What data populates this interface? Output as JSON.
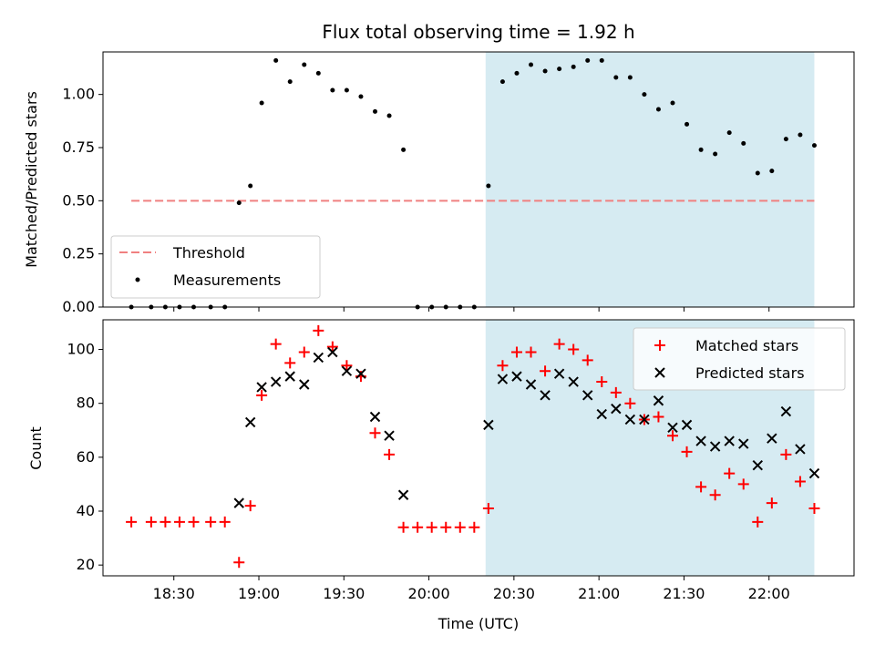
{
  "chart_data": {
    "title": "Flux total observing time = 1.92 h",
    "xlabel": "Time (UTC)",
    "x_tick_labels": [
      "18:30",
      "19:00",
      "19:30",
      "20:00",
      "20:30",
      "21:00",
      "21:30",
      "22:00"
    ],
    "x_tick_times": [
      "18:30",
      "19:00",
      "19:30",
      "20:00",
      "20:30",
      "21:00",
      "21:30",
      "22:00"
    ],
    "xlim": [
      "18:05",
      "22:30"
    ],
    "shaded_interval": [
      "20:20",
      "22:16"
    ],
    "colors": {
      "shade": "#add8e6",
      "threshold": "#f08080",
      "matched": "#ff0000",
      "predicted": "#000000"
    },
    "panels": [
      {
        "type": "scatter",
        "ylabel": "Matched/Predicted stars",
        "ylim": [
          0,
          1.2
        ],
        "y_tick_labels": [
          "0.00",
          "0.25",
          "0.50",
          "0.75",
          "1.00"
        ],
        "y_tick_values": [
          0,
          0.25,
          0.5,
          0.75,
          1.0
        ],
        "legend_position": "lower-left",
        "series": [
          {
            "name": "Threshold",
            "style": "dashed-line",
            "x": [
              "18:15",
              "22:16"
            ],
            "y": [
              0.5,
              0.5
            ]
          },
          {
            "name": "Measurements",
            "style": "dot",
            "x": [
              "18:15",
              "18:22",
              "18:27",
              "18:32",
              "18:37",
              "18:43",
              "18:48",
              "18:53",
              "18:57",
              "19:01",
              "19:06",
              "19:11",
              "19:16",
              "19:21",
              "19:26",
              "19:31",
              "19:36",
              "19:41",
              "19:46",
              "19:51",
              "19:56",
              "20:01",
              "20:06",
              "20:11",
              "20:16",
              "20:21",
              "20:26",
              "20:31",
              "20:36",
              "20:41",
              "20:46",
              "20:51",
              "20:56",
              "21:01",
              "21:06",
              "21:11",
              "21:16",
              "21:21",
              "21:26",
              "21:31",
              "21:36",
              "21:41",
              "21:46",
              "21:51",
              "21:56",
              "22:01",
              "22:06",
              "22:11",
              "22:16"
            ],
            "y": [
              0,
              0,
              0,
              0,
              0,
              0,
              0,
              0.49,
              0.57,
              0.96,
              1.16,
              1.06,
              1.14,
              1.1,
              1.02,
              1.02,
              0.99,
              0.92,
              0.9,
              0.74,
              0,
              0,
              0,
              0,
              0,
              0.57,
              1.06,
              1.1,
              1.14,
              1.11,
              1.12,
              1.13,
              1.16,
              1.16,
              1.08,
              1.08,
              1.0,
              0.93,
              0.96,
              0.86,
              0.74,
              0.72,
              0.82,
              0.77,
              0.63,
              0.64,
              0.79,
              0.81,
              0.76
            ]
          }
        ]
      },
      {
        "type": "scatter",
        "ylabel": "Count",
        "ylim": [
          16,
          111
        ],
        "y_tick_labels": [
          "20",
          "40",
          "60",
          "80",
          "100"
        ],
        "y_tick_values": [
          20,
          40,
          60,
          80,
          100
        ],
        "legend_position": "upper-right",
        "series": [
          {
            "name": "Matched stars",
            "style": "plus",
            "x": [
              "18:15",
              "18:22",
              "18:27",
              "18:32",
              "18:37",
              "18:43",
              "18:48",
              "18:53",
              "18:57",
              "19:01",
              "19:06",
              "19:11",
              "19:16",
              "19:21",
              "19:26",
              "19:31",
              "19:36",
              "19:41",
              "19:46",
              "19:51",
              "19:56",
              "20:01",
              "20:06",
              "20:11",
              "20:16",
              "20:21",
              "20:26",
              "20:31",
              "20:36",
              "20:41",
              "20:46",
              "20:51",
              "20:56",
              "21:01",
              "21:06",
              "21:11",
              "21:16",
              "21:21",
              "21:26",
              "21:31",
              "21:36",
              "21:41",
              "21:46",
              "21:51",
              "21:56",
              "22:01",
              "22:06",
              "22:11",
              "22:16"
            ],
            "y": [
              36,
              36,
              36,
              36,
              36,
              36,
              36,
              21,
              42,
              83,
              102,
              95,
              99,
              107,
              101,
              94,
              90,
              69,
              61,
              34,
              34,
              34,
              34,
              34,
              34,
              41,
              94,
              99,
              99,
              92,
              102,
              100,
              96,
              88,
              84,
              80,
              74,
              75,
              68,
              62,
              49,
              46,
              54,
              50,
              36,
              43,
              61,
              51,
              41
            ]
          },
          {
            "name": "Predicted stars",
            "style": "cross",
            "x": [
              "18:53",
              "18:57",
              "19:01",
              "19:06",
              "19:11",
              "19:16",
              "19:21",
              "19:26",
              "19:31",
              "19:36",
              "19:41",
              "19:46",
              "19:51",
              "20:21",
              "20:26",
              "20:31",
              "20:36",
              "20:41",
              "20:46",
              "20:51",
              "20:56",
              "21:01",
              "21:06",
              "21:11",
              "21:16",
              "21:21",
              "21:26",
              "21:31",
              "21:36",
              "21:41",
              "21:46",
              "21:51",
              "21:56",
              "22:01",
              "22:06",
              "22:11",
              "22:16"
            ],
            "y": [
              43,
              73,
              86,
              88,
              90,
              87,
              97,
              99,
              92,
              91,
              75,
              68,
              46,
              72,
              89,
              90,
              87,
              83,
              91,
              88,
              83,
              76,
              78,
              74,
              74,
              81,
              71,
              72,
              66,
              64,
              66,
              65,
              57,
              67,
              77,
              63,
              54
            ]
          }
        ]
      }
    ]
  }
}
